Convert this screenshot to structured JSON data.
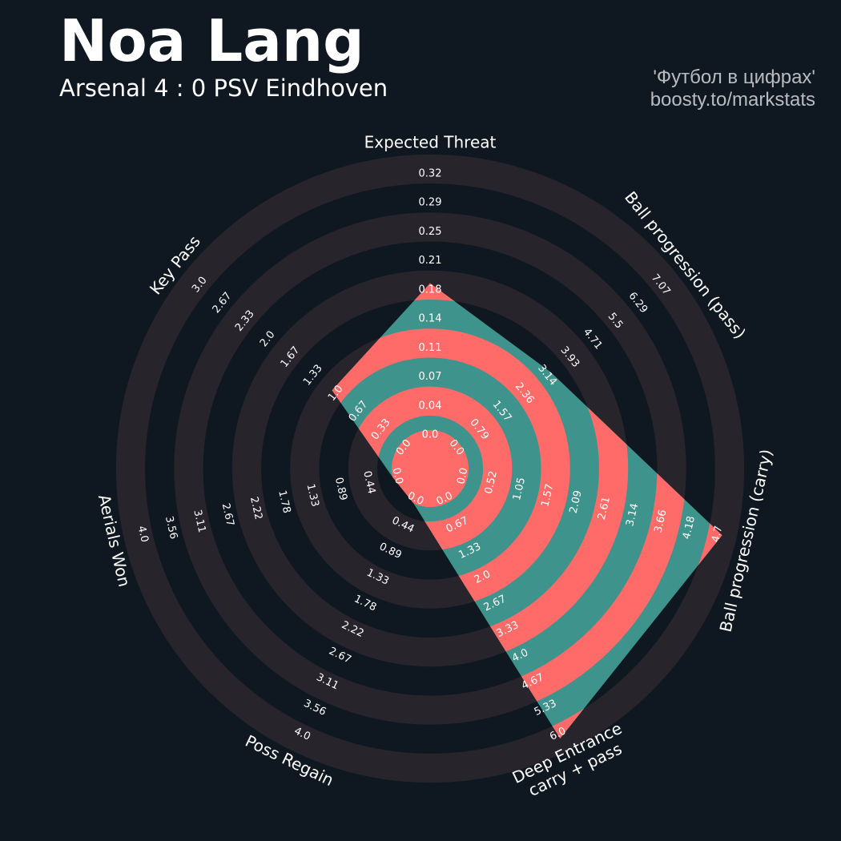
{
  "header": {
    "player_name": "Noa Lang",
    "match": "Arsenal 4 : 0 PSV Eindhoven",
    "credit_line_1": "'Футбол в цифрах'",
    "credit_line_2": "boosty.to/markstats"
  },
  "colors": {
    "background": "#0f1820",
    "ring": "#28242b",
    "player_fill_a": "#3e948c",
    "player_fill_b": "#ff6b68",
    "text": "#ffffff",
    "credit": "#b8bcc0"
  },
  "chart_data": {
    "type": "radar",
    "title": "Noa Lang",
    "subtitle": "Arsenal 4 : 0 PSV Eindhoven",
    "params": [
      {
        "label": "Expected Threat",
        "label_line2": "",
        "min": 0.0,
        "max": 0.32,
        "value": 0.18,
        "ticks": [
          "0.0",
          "0.04",
          "0.07",
          "0.11",
          "0.14",
          "0.18",
          "0.21",
          "0.25",
          "0.29",
          "0.32"
        ]
      },
      {
        "label": "Ball progression (pass)",
        "label_line2": "",
        "min": 0.0,
        "max": 7.07,
        "value": 3.14,
        "ticks": [
          "0.0",
          "0.79",
          "1.57",
          "2.36",
          "3.14",
          "3.93",
          "4.71",
          "5.5",
          "6.29",
          "7.07"
        ]
      },
      {
        "label": "Ball progression (carry)",
        "label_line2": "",
        "min": 0.0,
        "max": 4.7,
        "value": 4.7,
        "ticks": [
          "0.0",
          "0.52",
          "1.05",
          "1.57",
          "2.09",
          "2.61",
          "3.14",
          "3.66",
          "4.18",
          "4.7"
        ]
      },
      {
        "label": "Deep Entrance",
        "label_line2": "carry + pass",
        "min": 0.0,
        "max": 6.0,
        "value": 6.0,
        "ticks": [
          "0.0",
          "0.67",
          "1.33",
          "2.0",
          "2.67",
          "3.33",
          "4.0",
          "4.67",
          "5.33",
          "6.0"
        ]
      },
      {
        "label": "Poss Regain",
        "label_line2": "",
        "min": 0.0,
        "max": 4.0,
        "value": 0.0,
        "ticks": [
          "0.0",
          "0.44",
          "0.89",
          "1.33",
          "1.78",
          "2.22",
          "2.67",
          "3.11",
          "3.56",
          "4.0"
        ]
      },
      {
        "label": "Aerials Won",
        "label_line2": "",
        "min": 0.0,
        "max": 4.0,
        "value": 0.0,
        "ticks": [
          "0.0",
          "0.44",
          "0.89",
          "1.33",
          "1.78",
          "2.22",
          "2.67",
          "3.11",
          "3.56",
          "4.0"
        ]
      },
      {
        "label": "Key Pass",
        "label_line2": "",
        "min": 0.0,
        "max": 3.0,
        "value": 1.0,
        "ticks": [
          "0.0",
          "0.33",
          "0.67",
          "1.0",
          "1.33",
          "1.67",
          "2.0",
          "2.33",
          "2.67",
          "3.0"
        ]
      }
    ],
    "rings": 5,
    "grid": true,
    "legend": "none"
  }
}
